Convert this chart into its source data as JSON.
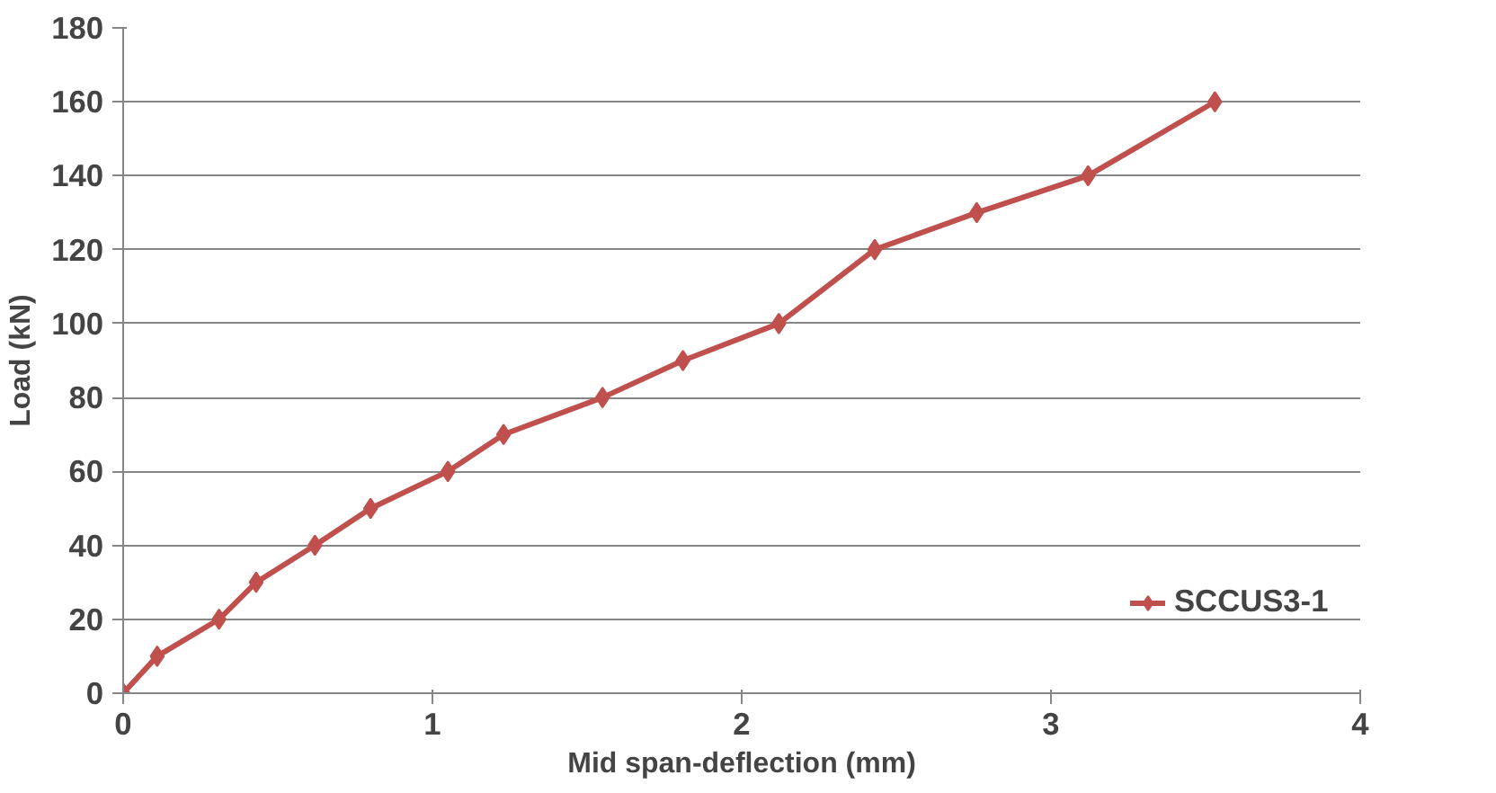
{
  "chart_data": {
    "type": "line",
    "xlabel": "Mid span-deflection (mm)",
    "ylabel": "Load (kN)",
    "xlim": [
      0,
      4
    ],
    "xticks": [
      0,
      1,
      2,
      3,
      4
    ],
    "ylim": [
      0,
      180
    ],
    "yticks": [
      0,
      20,
      40,
      60,
      80,
      100,
      120,
      140,
      160,
      180
    ],
    "grid": "y",
    "legend": "right",
    "marker": "diamond",
    "line_style": "solid",
    "series": [
      {
        "name": "SCCUS3-1",
        "color": "#c0504d",
        "x": [
          0,
          0.11,
          0.31,
          0.43,
          0.62,
          0.8,
          1.05,
          1.23,
          1.55,
          1.81,
          2.12,
          2.43,
          2.76,
          3.12,
          3.53
        ],
        "values": [
          0,
          10,
          20,
          30,
          40,
          50,
          60,
          70,
          80,
          90,
          100,
          120,
          130,
          140,
          160
        ]
      }
    ]
  }
}
